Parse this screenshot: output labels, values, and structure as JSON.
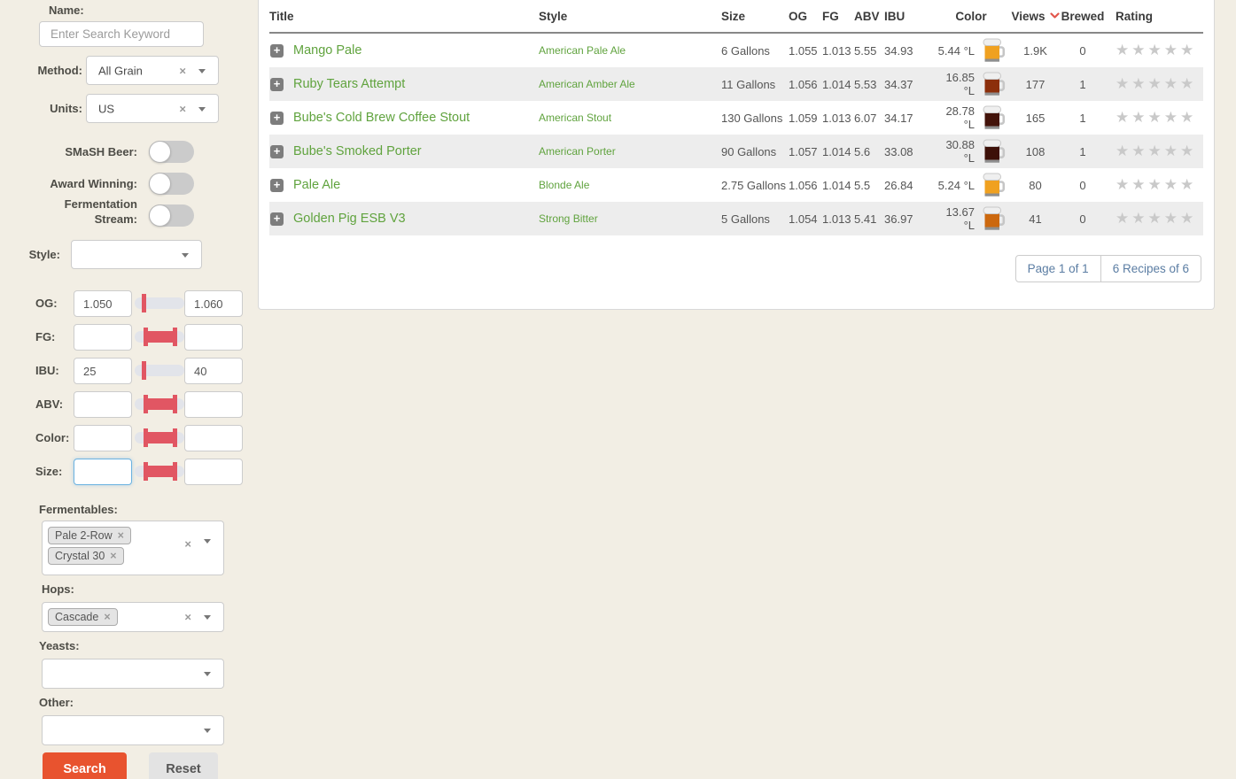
{
  "colors": {
    "page_bg": "#f2eee4",
    "accent_orange": "#e8532f",
    "slider_red": "#e15663",
    "link_green": "#60a33e",
    "pagination_blue": "#5b7da3",
    "sort_arrow_red": "#e2574c",
    "star_gray": "#c9c9c9"
  },
  "sidebar": {
    "name": {
      "label": "Name:",
      "placeholder": "Enter Search Keyword",
      "value": ""
    },
    "method": {
      "label": "Method:",
      "value": "All Grain"
    },
    "units": {
      "label": "Units:",
      "value": "US"
    },
    "toggles": [
      {
        "label": "SMaSH Beer:",
        "on": false
      },
      {
        "label": "Award Winning:",
        "on": false
      },
      {
        "label": "Fermentation Stream:",
        "on": false
      }
    ],
    "style": {
      "label": "Style:",
      "value": ""
    },
    "ranges": [
      {
        "label": "OG:",
        "min": "1.050",
        "max": "1.060",
        "slider": "narrow-left",
        "focused": false
      },
      {
        "label": "FG:",
        "min": "",
        "max": "",
        "slider": "wide",
        "focused": false
      },
      {
        "label": "IBU:",
        "min": "25",
        "max": "40",
        "slider": "narrow-left",
        "focused": false
      },
      {
        "label": "ABV:",
        "min": "",
        "max": "",
        "slider": "wide",
        "focused": false
      },
      {
        "label": "Color:",
        "min": "",
        "max": "",
        "slider": "wide",
        "focused": false
      },
      {
        "label": "Size:",
        "min": "",
        "max": "",
        "slider": "wide",
        "focused": true
      }
    ],
    "fermentables": {
      "label": "Fermentables:",
      "tags": [
        "Pale 2-Row",
        "Crystal 30"
      ]
    },
    "hops": {
      "label": "Hops:",
      "tags": [
        "Cascade"
      ]
    },
    "yeasts": {
      "label": "Yeasts:",
      "tags": []
    },
    "other": {
      "label": "Other:",
      "tags": []
    },
    "search_button": "Search",
    "reset_button": "Reset"
  },
  "table": {
    "headers": [
      "Title",
      "Style",
      "Size",
      "OG",
      "FG",
      "ABV",
      "IBU",
      "Color",
      "Views",
      "Brewed",
      "Rating"
    ],
    "sort": {
      "column": "Views",
      "direction": "desc"
    },
    "empty_rating": "★★★★★",
    "rows": [
      {
        "title": "Mango Pale",
        "style": "American Pale Ale",
        "size": "6 Gallons",
        "og": "1.055",
        "fg": "1.013",
        "abv": "5.55",
        "ibu": "34.93",
        "color": "5.44 °L",
        "mug_color": "#f0a120",
        "views": "1.9K",
        "brewed": "0"
      },
      {
        "title": "Ruby Tears Attempt",
        "style": "American Amber Ale",
        "size": "11 Gallons",
        "og": "1.056",
        "fg": "1.014",
        "abv": "5.53",
        "ibu": "34.37",
        "color": "16.85 °L",
        "mug_color": "#8c2f0b",
        "views": "177",
        "brewed": "1"
      },
      {
        "title": "Bube's Cold Brew Coffee Stout",
        "style": "American Stout",
        "size": "130 Gallons",
        "og": "1.059",
        "fg": "1.013",
        "abv": "6.07",
        "ibu": "34.17",
        "color": "28.78 °L",
        "mug_color": "#43130a",
        "views": "165",
        "brewed": "1"
      },
      {
        "title": "Bube's Smoked Porter",
        "style": "American Porter",
        "size": "90 Gallons",
        "og": "1.057",
        "fg": "1.014",
        "abv": "5.6",
        "ibu": "33.08",
        "color": "30.88 °L",
        "mug_color": "#3d1008",
        "views": "108",
        "brewed": "1"
      },
      {
        "title": "Pale Ale",
        "style": "Blonde Ale",
        "size": "2.75 Gallons",
        "og": "1.056",
        "fg": "1.014",
        "abv": "5.5",
        "ibu": "26.84",
        "color": "5.24 °L",
        "mug_color": "#f0a120",
        "views": "80",
        "brewed": "0"
      },
      {
        "title": "Golden Pig ESB V3",
        "style": "Strong Bitter",
        "size": "5 Gallons",
        "og": "1.054",
        "fg": "1.013",
        "abv": "5.41",
        "ibu": "36.97",
        "color": "13.67 °L",
        "mug_color": "#cc680e",
        "views": "41",
        "brewed": "0"
      }
    ],
    "pagination": {
      "page": "Page 1 of 1",
      "recipes": "6 Recipes of 6"
    }
  }
}
